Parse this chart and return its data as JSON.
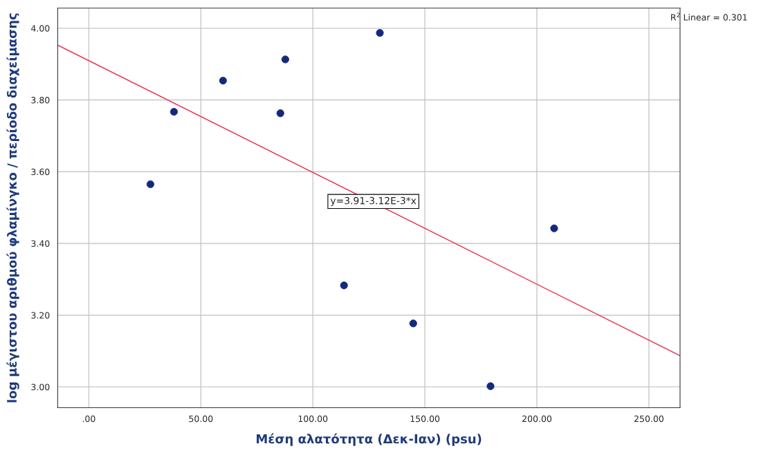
{
  "chart_data": {
    "type": "scatter",
    "xlabel": "Μέση αλατότητα (Δεκ-Ιαν) (psu)",
    "ylabel": "log μέγιστου αριθμού φλαμίνγκο / περίοδο διαχείμασης",
    "series": [
      {
        "type": "scatter",
        "color": "#13297a",
        "marker": "circle",
        "x": [
          27.5,
          38.0,
          59.9,
          85.5,
          87.7,
          113.9,
          129.9,
          144.8,
          179.3,
          207.7
        ],
        "values": [
          3.565,
          3.767,
          3.854,
          3.763,
          3.913,
          3.283,
          3.987,
          3.177,
          3.002,
          3.442
        ]
      },
      {
        "type": "line",
        "color": "#e8375a",
        "marker": "none",
        "line_style": "solid",
        "x": [
          -13.9,
          263.9
        ],
        "values": [
          3.953,
          3.087
        ]
      }
    ],
    "xlim": [
      -13.9,
      263.9
    ],
    "ylim": [
      2.942,
      4.056
    ],
    "xticks": [
      {
        "value": 0,
        "label": ".00"
      },
      {
        "value": 50,
        "label": "50.00"
      },
      {
        "value": 100,
        "label": "100.00"
      },
      {
        "value": 150,
        "label": "150.00"
      },
      {
        "value": 200,
        "label": "200.00"
      },
      {
        "value": 250,
        "label": "250.00"
      }
    ],
    "yticks": [
      {
        "value": 3.0,
        "label": "3.00"
      },
      {
        "value": 3.2,
        "label": "3.20"
      },
      {
        "value": 3.4,
        "label": "3.40"
      },
      {
        "value": 3.6,
        "label": "3.60"
      },
      {
        "value": 3.8,
        "label": "3.80"
      },
      {
        "value": 4.0,
        "label": "4.00"
      }
    ],
    "grid": true,
    "annotations": [
      {
        "text": "y=3.91-3.12E-3*x",
        "x": 127,
        "y": 3.517
      },
      "R$^{2}$ Linear = 0.301"
    ]
  }
}
